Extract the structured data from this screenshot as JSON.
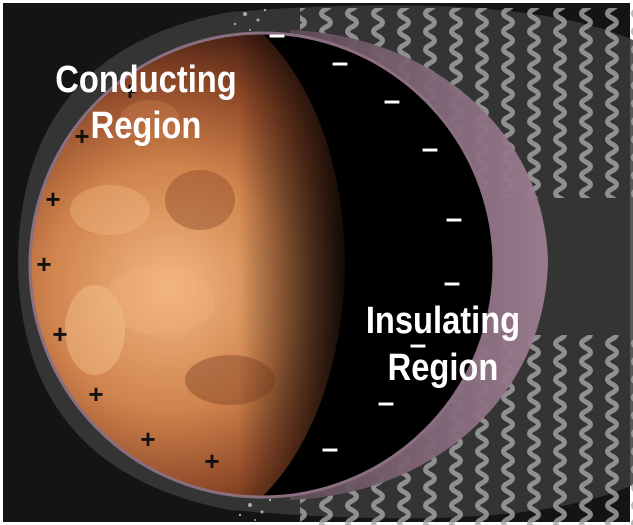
{
  "labels": {
    "conducting_line1": "Conducting",
    "conducting_line2": "Region",
    "insulating_line1": "Insulating",
    "insulating_line2": "Region"
  },
  "charges": {
    "positive": "+",
    "negative": "–"
  },
  "colors": {
    "background": "#1b1b1b",
    "moon_light": "#e9a268",
    "moon_mid": "#b7653a",
    "moon_dark": "#3a1a10",
    "night_side": "#000000",
    "sheath_pink": "#8e6f82",
    "wave_gray": "#9a9a9a",
    "label_white": "#ffffff"
  }
}
